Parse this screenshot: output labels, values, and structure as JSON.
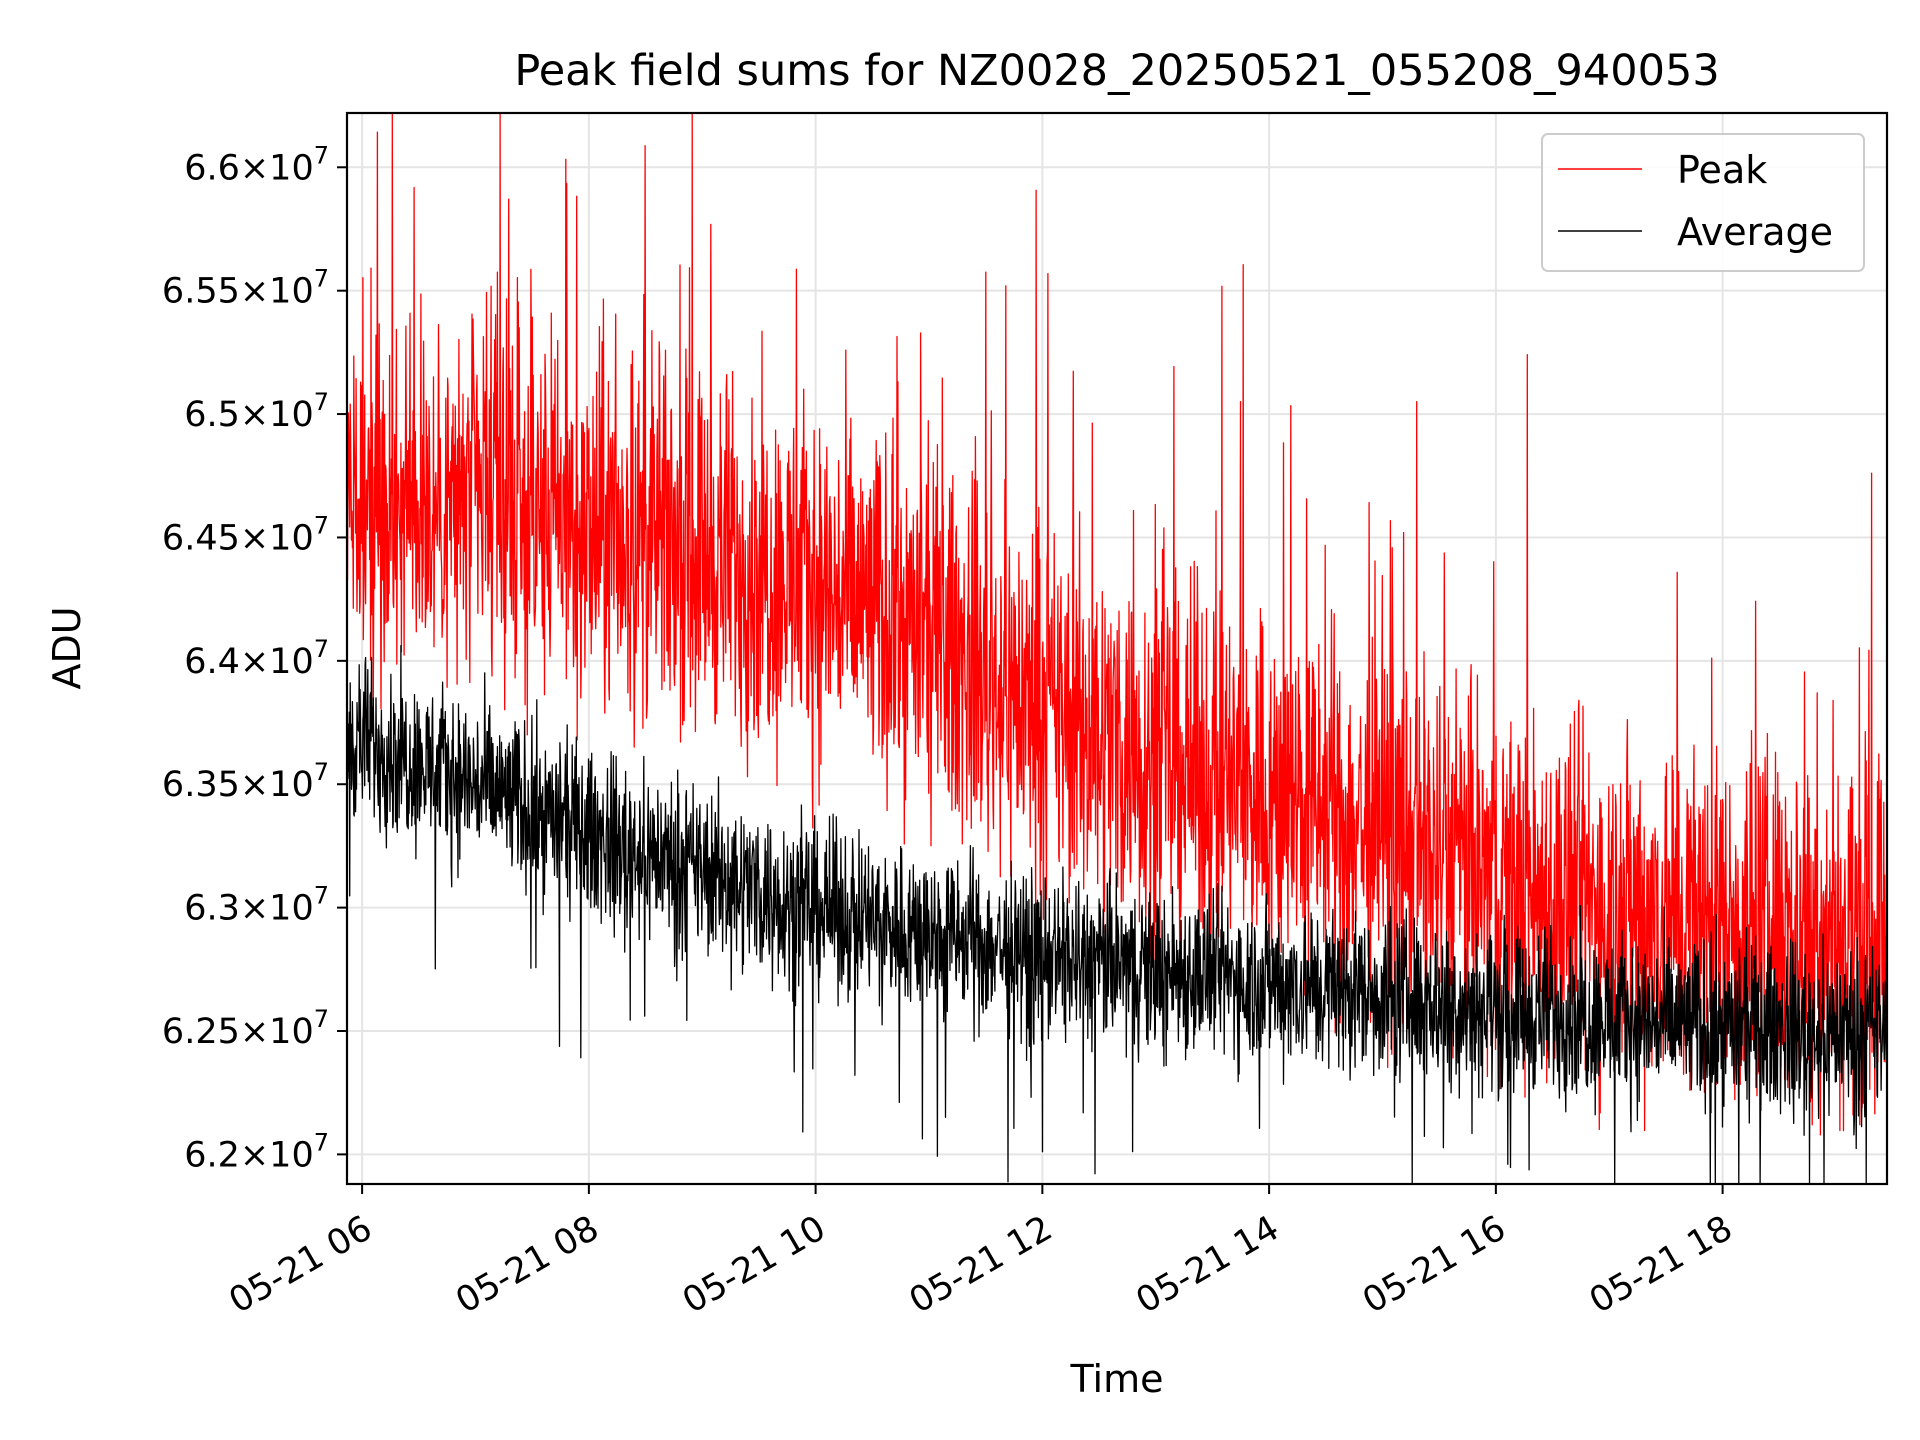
{
  "chart_data": {
    "type": "line",
    "title": "Peak field sums for NZ0028_20250521_055208_940053",
    "xlabel": "Time",
    "ylabel": "ADU",
    "x_start": "2025-05-21 05:52",
    "x_end": "2025-05-21 19:27",
    "xlim": [
      "2025-05-21 05:52",
      "2025-05-21 19:27"
    ],
    "ylim": [
      61880000,
      66220000
    ],
    "x_ticks": [
      {
        "time": "2025-05-21 06:00",
        "label": "05-21 06"
      },
      {
        "time": "2025-05-21 08:00",
        "label": "05-21 08"
      },
      {
        "time": "2025-05-21 10:00",
        "label": "05-21 10"
      },
      {
        "time": "2025-05-21 12:00",
        "label": "05-21 12"
      },
      {
        "time": "2025-05-21 14:00",
        "label": "05-21 14"
      },
      {
        "time": "2025-05-21 16:00",
        "label": "05-21 16"
      },
      {
        "time": "2025-05-21 18:00",
        "label": "05-21 18"
      }
    ],
    "y_ticks": [
      {
        "value": 62000000,
        "mant": "6.2"
      },
      {
        "value": 62500000,
        "mant": "6.25"
      },
      {
        "value": 63000000,
        "mant": "6.3"
      },
      {
        "value": 63500000,
        "mant": "6.35"
      },
      {
        "value": 64000000,
        "mant": "6.4"
      },
      {
        "value": 64500000,
        "mant": "6.45"
      },
      {
        "value": 65000000,
        "mant": "6.5"
      },
      {
        "value": 65500000,
        "mant": "6.55"
      },
      {
        "value": 66000000,
        "mant": "6.6"
      }
    ],
    "tick_base": "10",
    "tick_exp": "7",
    "tick_times": "×",
    "grid": true,
    "legend_placement": "top-right",
    "series": [
      {
        "name": "Peak",
        "color": "#ff0000",
        "trend_x": [
          "2025-05-21 05:52",
          "2025-05-21 07:00",
          "2025-05-21 08:00",
          "2025-05-21 09:00",
          "2025-05-21 10:00",
          "2025-05-21 11:00",
          "2025-05-21 12:00",
          "2025-05-21 13:00",
          "2025-05-21 14:00",
          "2025-05-21 15:00",
          "2025-05-21 16:00",
          "2025-05-21 17:00",
          "2025-05-21 18:00",
          "2025-05-21 19:27"
        ],
        "trend_values": [
          64600000,
          64650000,
          64500000,
          64450000,
          64300000,
          64100000,
          63800000,
          63600000,
          63450000,
          63300000,
          63100000,
          63000000,
          62950000,
          62900000
        ],
        "spread": 1300000,
        "max": 66200000
      },
      {
        "name": "Average",
        "color": "#000000",
        "trend_x": [
          "2025-05-21 05:52",
          "2025-05-21 07:00",
          "2025-05-21 08:00",
          "2025-05-21 09:00",
          "2025-05-21 10:00",
          "2025-05-21 11:00",
          "2025-05-21 12:00",
          "2025-05-21 13:00",
          "2025-05-21 14:00",
          "2025-05-21 15:00",
          "2025-05-21 16:00",
          "2025-05-21 17:00",
          "2025-05-21 18:00",
          "2025-05-21 19:27"
        ],
        "trend_values": [
          63700000,
          63500000,
          63300000,
          63150000,
          63000000,
          62900000,
          62800000,
          62750000,
          62700000,
          62650000,
          62600000,
          62550000,
          62520000,
          62500000
        ],
        "spread": 600000,
        "min": 61880000
      }
    ]
  }
}
